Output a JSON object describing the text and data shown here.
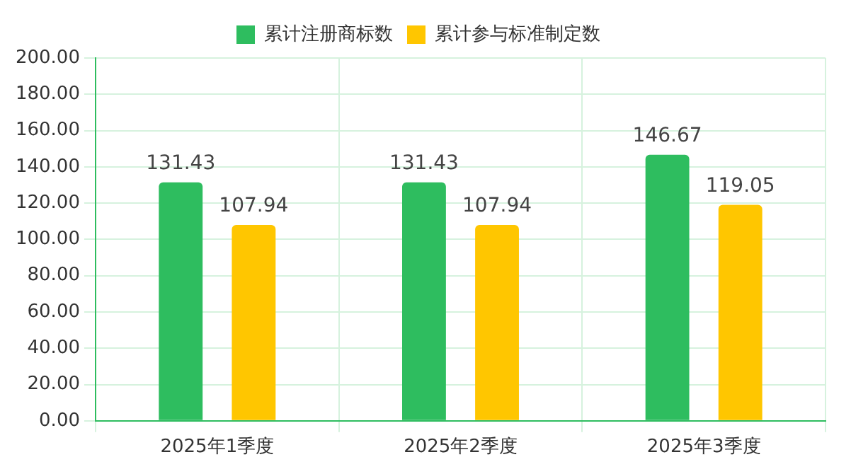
{
  "chart_data": {
    "type": "bar",
    "categories": [
      "2025年1季度",
      "2025年2季度",
      "2025年3季度"
    ],
    "series": [
      {
        "name": "累计注册商标数",
        "color": "#2ebd5f",
        "values": [
          131.43,
          131.43,
          146.67
        ]
      },
      {
        "name": "累计参与标准制定数",
        "color": "#ffc600",
        "values": [
          107.94,
          107.94,
          119.05
        ]
      }
    ],
    "ylim": [
      0,
      200
    ],
    "yticks": [
      {
        "value": 0,
        "label": "0.00"
      },
      {
        "value": 20,
        "label": "20.00"
      },
      {
        "value": 40,
        "label": "40.00"
      },
      {
        "value": 60,
        "label": "60.00"
      },
      {
        "value": 80,
        "label": "80.00"
      },
      {
        "value": 100,
        "label": "100.00"
      },
      {
        "value": 120,
        "label": "120.00"
      },
      {
        "value": 140,
        "label": "140.00"
      },
      {
        "value": 160,
        "label": "160.00"
      },
      {
        "value": 180,
        "label": "180.00"
      },
      {
        "value": 200,
        "label": "200.00"
      }
    ],
    "grid": true,
    "legend": "top",
    "data_labels": true
  }
}
